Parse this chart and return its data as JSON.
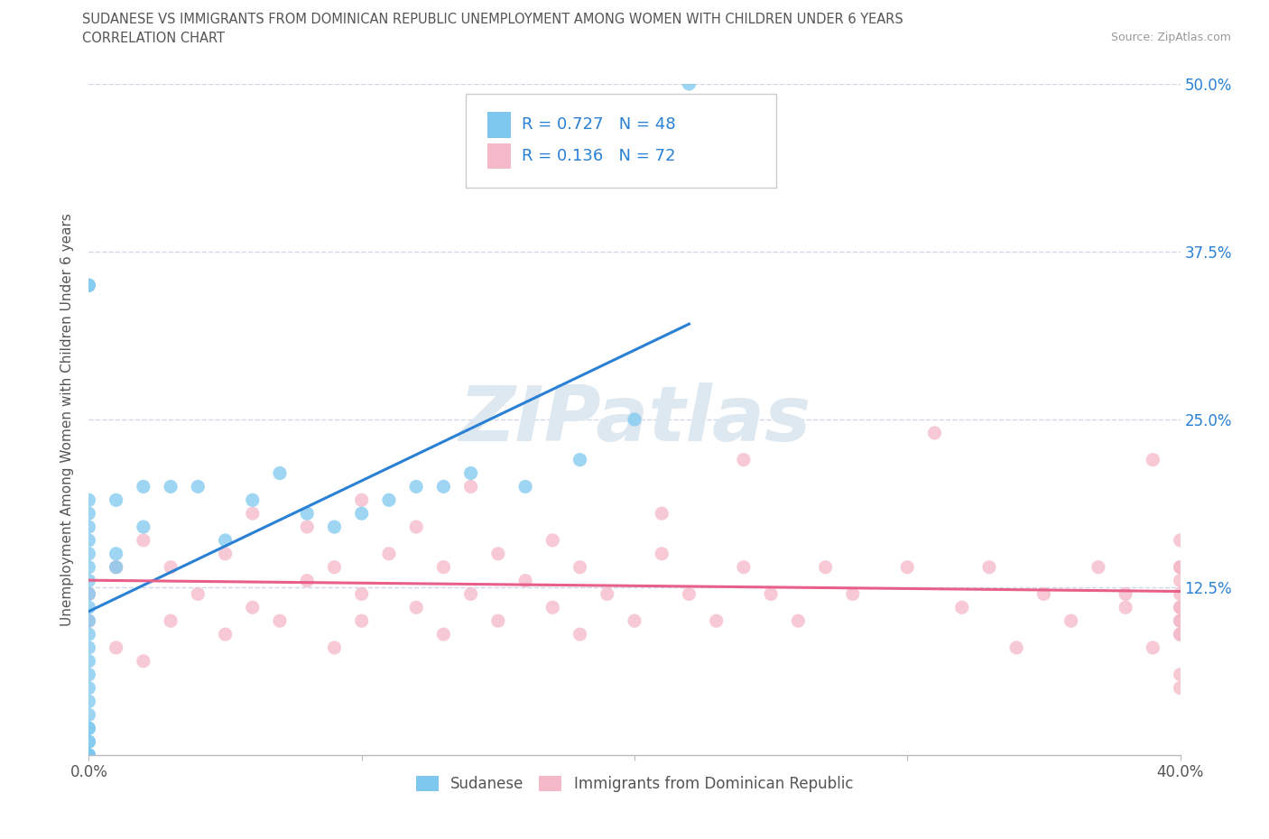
{
  "title_line1": "SUDANESE VS IMMIGRANTS FROM DOMINICAN REPUBLIC UNEMPLOYMENT AMONG WOMEN WITH CHILDREN UNDER 6 YEARS",
  "title_line2": "CORRELATION CHART",
  "source": "Source: ZipAtlas.com",
  "ylabel": "Unemployment Among Women with Children Under 6 years",
  "xlim": [
    0.0,
    0.4
  ],
  "ylim": [
    0.0,
    0.5
  ],
  "xtick_values": [
    0.0,
    0.1,
    0.2,
    0.3,
    0.4
  ],
  "xtick_labels": [
    "0.0%",
    "",
    "",
    "",
    "40.0%"
  ],
  "ytick_values": [
    0.125,
    0.25,
    0.375,
    0.5
  ],
  "ytick_labels": [
    "12.5%",
    "25.0%",
    "37.5%",
    "50.0%"
  ],
  "legend_entry1": "Sudanese",
  "legend_entry2": "Immigrants from Dominican Republic",
  "R1": 0.727,
  "N1": 48,
  "R2": 0.136,
  "N2": 72,
  "color_sudanese": "#7ec8f0",
  "color_dominican": "#f4b8c8",
  "color_line_sudanese": "#2980d4",
  "color_line_dominican": "#e8608a",
  "color_text_blue": "#2980d4",
  "bg_color": "#ffffff",
  "grid_color": "#d0d8e8",
  "axis_color": "#bbbbbb",
  "text_color": "#555555",
  "watermark_color": "#dde8f0",
  "sudanese_x": [
    0.0,
    0.0,
    0.0,
    0.0,
    0.0,
    0.0,
    0.0,
    0.0,
    0.0,
    0.0,
    0.0,
    0.0,
    0.0,
    0.0,
    0.0,
    0.0,
    0.0,
    0.0,
    0.0,
    0.0,
    0.0,
    0.0,
    0.0,
    0.0,
    0.0,
    0.0,
    0.0,
    0.01,
    0.01,
    0.01,
    0.02,
    0.02,
    0.03,
    0.04,
    0.05,
    0.06,
    0.07,
    0.08,
    0.09,
    0.1,
    0.11,
    0.12,
    0.13,
    0.14,
    0.16,
    0.18,
    0.2,
    0.22
  ],
  "sudanese_y": [
    0.0,
    0.0,
    0.0,
    0.0,
    0.01,
    0.01,
    0.02,
    0.02,
    0.03,
    0.04,
    0.05,
    0.06,
    0.07,
    0.08,
    0.09,
    0.1,
    0.11,
    0.12,
    0.13,
    0.14,
    0.15,
    0.16,
    0.17,
    0.18,
    0.19,
    0.35,
    0.35,
    0.14,
    0.15,
    0.19,
    0.17,
    0.2,
    0.2,
    0.2,
    0.16,
    0.19,
    0.21,
    0.18,
    0.17,
    0.18,
    0.19,
    0.2,
    0.2,
    0.21,
    0.2,
    0.22,
    0.25,
    0.5
  ],
  "dominican_x": [
    0.0,
    0.0,
    0.01,
    0.01,
    0.02,
    0.02,
    0.03,
    0.03,
    0.04,
    0.05,
    0.05,
    0.06,
    0.06,
    0.07,
    0.08,
    0.08,
    0.09,
    0.09,
    0.1,
    0.1,
    0.1,
    0.11,
    0.12,
    0.12,
    0.13,
    0.13,
    0.14,
    0.14,
    0.15,
    0.15,
    0.16,
    0.17,
    0.17,
    0.18,
    0.18,
    0.19,
    0.2,
    0.21,
    0.21,
    0.22,
    0.23,
    0.24,
    0.24,
    0.25,
    0.26,
    0.27,
    0.28,
    0.3,
    0.31,
    0.32,
    0.33,
    0.34,
    0.35,
    0.36,
    0.37,
    0.38,
    0.38,
    0.39,
    0.39,
    0.4,
    0.4,
    0.4,
    0.4,
    0.4,
    0.4,
    0.4,
    0.4,
    0.4,
    0.4,
    0.4,
    0.4,
    0.4
  ],
  "dominican_y": [
    0.1,
    0.12,
    0.08,
    0.14,
    0.07,
    0.16,
    0.1,
    0.14,
    0.12,
    0.09,
    0.15,
    0.11,
    0.18,
    0.1,
    0.13,
    0.17,
    0.08,
    0.14,
    0.12,
    0.19,
    0.1,
    0.15,
    0.11,
    0.17,
    0.09,
    0.14,
    0.12,
    0.2,
    0.1,
    0.15,
    0.13,
    0.11,
    0.16,
    0.09,
    0.14,
    0.12,
    0.1,
    0.15,
    0.18,
    0.12,
    0.1,
    0.14,
    0.22,
    0.12,
    0.1,
    0.14,
    0.12,
    0.14,
    0.24,
    0.11,
    0.14,
    0.08,
    0.12,
    0.1,
    0.14,
    0.11,
    0.12,
    0.08,
    0.22,
    0.11,
    0.14,
    0.1,
    0.16,
    0.06,
    0.12,
    0.14,
    0.11,
    0.09,
    0.05,
    0.13,
    0.1,
    0.09
  ]
}
